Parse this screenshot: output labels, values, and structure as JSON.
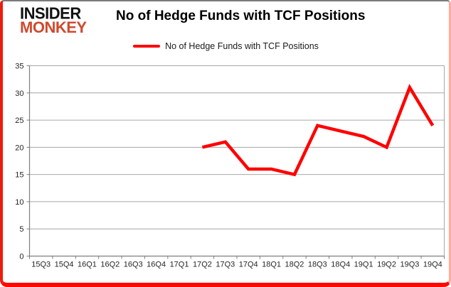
{
  "brand": {
    "line1": "INSIDER",
    "line2": "MONKEY"
  },
  "header": {
    "title": "No of Hedge Funds with TCF Positions"
  },
  "legend": {
    "label": "No of Hedge Funds with TCF Positions",
    "swatch_color": "#ff0000"
  },
  "colors": {
    "series_line": "#ff0000",
    "frame_border": "#ee1b10",
    "logo_black": "#121212",
    "logo_red": "#cf4a2f",
    "gridline": "#a6a6a6",
    "axis": "#7f7f7f",
    "label_text": "#262626"
  },
  "chart_data": {
    "type": "line",
    "title": "No of Hedge Funds with TCF Positions",
    "categories": [
      "15Q3",
      "15Q4",
      "16Q1",
      "16Q2",
      "16Q3",
      "16Q4",
      "17Q1",
      "17Q2",
      "17Q3",
      "17Q4",
      "18Q1",
      "18Q2",
      "18Q3",
      "18Q4",
      "19Q1",
      "19Q2",
      "19Q3",
      "19Q4"
    ],
    "series": [
      {
        "name": "No of Hedge Funds with TCF Positions",
        "color": "#ff0000",
        "values": [
          null,
          null,
          null,
          null,
          null,
          null,
          null,
          20,
          21,
          16,
          16,
          15,
          24,
          23,
          22,
          20,
          31,
          24
        ]
      }
    ],
    "ylim": [
      0,
      35
    ],
    "yticks": [
      0,
      5,
      10,
      15,
      20,
      25,
      30,
      35
    ],
    "grid": "horizontal",
    "legend_position": "top-center"
  }
}
